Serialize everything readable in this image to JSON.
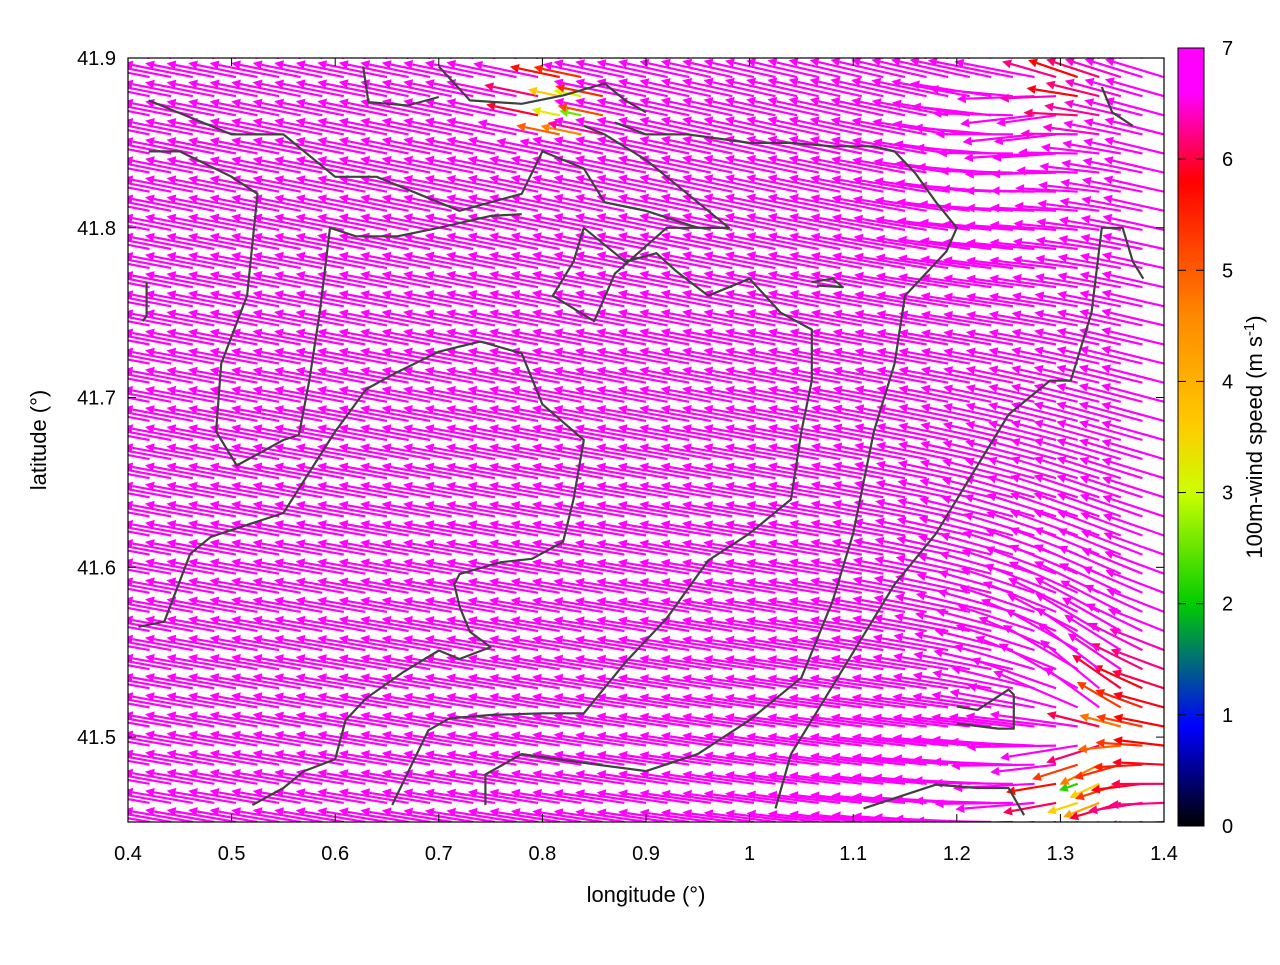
{
  "chart_data": {
    "type": "vector-field",
    "xlabel": "longitude (°)",
    "ylabel": "latitude (°)",
    "xlim": [
      0.4,
      1.4
    ],
    "ylim": [
      41.45,
      41.9
    ],
    "x_ticks": [
      "0.4",
      "0.5",
      "0.6",
      "0.7",
      "0.8",
      "0.9",
      "1",
      "1.1",
      "1.2",
      "1.3",
      "1.4"
    ],
    "y_ticks": [
      "41.5",
      "41.6",
      "41.7",
      "41.8",
      "41.9"
    ],
    "x_tick_values": [
      0.4,
      0.5,
      0.6,
      0.7,
      0.8,
      0.9,
      1.0,
      1.1,
      1.2,
      1.3,
      1.4
    ],
    "y_tick_values": [
      41.5,
      41.6,
      41.7,
      41.8,
      41.9
    ],
    "colorbar": {
      "label": "100m-wind speed (m s-1)",
      "label_main": "100m-wind speed (m s",
      "label_sup": "-1",
      "label_end": ")",
      "range": [
        0,
        7
      ],
      "ticks": [
        "0",
        "1",
        "2",
        "3",
        "4",
        "5",
        "6",
        "7"
      ],
      "tick_values": [
        0,
        1,
        2,
        3,
        4,
        5,
        6,
        7
      ],
      "palette": [
        "#000000",
        "#0000ff",
        "#00cc00",
        "#ccff00",
        "#ffcc00",
        "#ff8800",
        "#ff0000",
        "#ff00ff",
        "#ff00ff"
      ],
      "palette_stops": [
        0,
        0.9,
        2,
        3,
        3.6,
        4.6,
        5.8,
        6.6,
        7
      ]
    },
    "vector_field": {
      "grid_x_count": 48,
      "grid_y_count": 40,
      "speed_cap": 7,
      "arrow_scale_deg_per_ms": 0.0085,
      "base_flow": {
        "u": -7.6,
        "v": 0.9
      },
      "sources": [
        {
          "lon": 1.33,
          "lat": 41.505,
          "strength": 0.014
        },
        {
          "lon": 1.285,
          "lat": 41.89,
          "strength": 0.01
        }
      ],
      "stagnation": [
        {
          "lon": 0.83,
          "lat": 41.87,
          "radius": 0.05
        },
        {
          "lon": 1.32,
          "lat": 41.47,
          "radius": 0.045
        }
      ]
    },
    "coastline_color": "#404040",
    "contours": [
      [
        [
          0.42,
          41.875
        ],
        [
          0.5,
          41.855
        ],
        [
          0.55,
          41.855
        ],
        [
          0.6,
          41.83
        ],
        [
          0.64,
          41.83
        ],
        [
          0.7,
          41.815
        ],
        [
          0.72,
          41.81
        ],
        [
          0.78,
          41.82
        ],
        [
          0.8,
          41.845
        ],
        [
          0.84,
          41.835
        ],
        [
          0.86,
          41.815
        ],
        [
          0.9,
          41.81
        ],
        [
          0.95,
          41.8
        ],
        [
          0.98,
          41.8
        ],
        [
          0.94,
          41.82
        ],
        [
          0.9,
          41.84
        ],
        [
          0.86,
          41.855
        ],
        [
          0.84,
          41.86
        ]
      ],
      [
        [
          0.42,
          41.845
        ],
        [
          0.45,
          41.845
        ],
        [
          0.5,
          41.83
        ],
        [
          0.525,
          41.82
        ],
        [
          0.515,
          41.76
        ],
        [
          0.49,
          41.72
        ],
        [
          0.485,
          41.68
        ],
        [
          0.505,
          41.66
        ],
        [
          0.55,
          41.675
        ],
        [
          0.565,
          41.678
        ],
        [
          0.575,
          41.71
        ],
        [
          0.585,
          41.75
        ],
        [
          0.595,
          41.8
        ],
        [
          0.62,
          41.795
        ],
        [
          0.66,
          41.795
        ],
        [
          0.7,
          41.8
        ],
        [
          0.75,
          41.807
        ],
        [
          0.78,
          41.808
        ]
      ],
      [
        [
          0.418,
          41.768
        ],
        [
          0.418,
          41.748
        ],
        [
          0.414,
          41.745
        ]
      ],
      [
        [
          0.41,
          41.565
        ],
        [
          0.435,
          41.568
        ],
        [
          0.46,
          41.608
        ],
        [
          0.48,
          41.618
        ],
        [
          0.55,
          41.632
        ],
        [
          0.6,
          41.68
        ],
        [
          0.63,
          41.705
        ],
        [
          0.66,
          41.715
        ],
        [
          0.7,
          41.727
        ],
        [
          0.74,
          41.733
        ],
        [
          0.78,
          41.726
        ],
        [
          0.8,
          41.696
        ],
        [
          0.84,
          41.675
        ],
        [
          0.83,
          41.64
        ],
        [
          0.82,
          41.615
        ],
        [
          0.79,
          41.605
        ],
        [
          0.76,
          41.603
        ],
        [
          0.72,
          41.596
        ],
        [
          0.715,
          41.59
        ],
        [
          0.72,
          41.577
        ],
        [
          0.73,
          41.562
        ],
        [
          0.75,
          41.553
        ],
        [
          0.72,
          41.546
        ],
        [
          0.7,
          41.551
        ],
        [
          0.665,
          41.538
        ],
        [
          0.63,
          41.523
        ],
        [
          0.61,
          41.51
        ],
        [
          0.6,
          41.487
        ],
        [
          0.57,
          41.48
        ],
        [
          0.55,
          41.47
        ],
        [
          0.52,
          41.46
        ]
      ],
      [
        [
          0.655,
          41.46
        ],
        [
          0.67,
          41.479
        ],
        [
          0.69,
          41.504
        ],
        [
          0.71,
          41.511
        ],
        [
          0.75,
          41.513
        ],
        [
          0.8,
          41.514
        ],
        [
          0.84,
          41.514
        ],
        [
          0.88,
          41.544
        ],
        [
          0.92,
          41.57
        ],
        [
          0.96,
          41.604
        ],
        [
          1.0,
          41.62
        ],
        [
          1.04,
          41.64
        ],
        [
          1.05,
          41.68
        ],
        [
          1.06,
          41.71
        ],
        [
          1.06,
          41.74
        ],
        [
          1.03,
          41.75
        ],
        [
          1.0,
          41.77
        ],
        [
          0.96,
          41.76
        ],
        [
          0.93,
          41.774
        ],
        [
          0.91,
          41.785
        ],
        [
          0.88,
          41.78
        ],
        [
          0.86,
          41.79
        ],
        [
          0.84,
          41.8
        ],
        [
          0.83,
          41.78
        ],
        [
          0.81,
          41.76
        ],
        [
          0.85,
          41.745
        ],
        [
          0.87,
          41.773
        ],
        [
          0.92,
          41.8
        ],
        [
          0.98,
          41.8
        ]
      ],
      [
        [
          0.745,
          41.46
        ],
        [
          0.745,
          41.478
        ],
        [
          0.78,
          41.49
        ],
        [
          0.85,
          41.484
        ],
        [
          0.9,
          41.48
        ],
        [
          0.95,
          41.49
        ],
        [
          1.0,
          41.51
        ],
        [
          1.05,
          41.535
        ],
        [
          1.08,
          41.58
        ],
        [
          1.1,
          41.62
        ],
        [
          1.12,
          41.68
        ],
        [
          1.14,
          41.72
        ],
        [
          1.15,
          41.76
        ],
        [
          1.19,
          41.786
        ],
        [
          1.2,
          41.8
        ],
        [
          1.18,
          41.815
        ],
        [
          1.16,
          41.832
        ],
        [
          1.14,
          41.845
        ],
        [
          1.12,
          41.848
        ],
        [
          1.08,
          41.848
        ],
        [
          1.04,
          41.85
        ],
        [
          1.0,
          41.85
        ],
        [
          0.94,
          41.855
        ],
        [
          0.9,
          41.855
        ],
        [
          0.87,
          41.862
        ]
      ],
      [
        [
          1.065,
          41.766
        ],
        [
          1.09,
          41.765
        ],
        [
          1.08,
          41.77
        ],
        [
          1.06,
          41.768
        ]
      ],
      [
        [
          1.025,
          41.458
        ],
        [
          1.04,
          41.49
        ],
        [
          1.07,
          41.52
        ],
        [
          1.1,
          41.55
        ],
        [
          1.14,
          41.59
        ],
        [
          1.18,
          41.62
        ],
        [
          1.22,
          41.66
        ],
        [
          1.25,
          41.69
        ],
        [
          1.29,
          41.71
        ],
        [
          1.31,
          41.71
        ],
        [
          1.33,
          41.75
        ],
        [
          1.34,
          41.8
        ],
        [
          1.36,
          41.8
        ],
        [
          1.37,
          41.78
        ],
        [
          1.38,
          41.77
        ]
      ],
      [
        [
          1.2,
          41.518
        ],
        [
          1.22,
          41.516
        ],
        [
          1.25,
          41.528
        ],
        [
          1.255,
          41.525
        ],
        [
          1.255,
          41.505
        ],
        [
          1.24,
          41.505
        ],
        [
          1.2,
          41.508
        ]
      ],
      [
        [
          1.11,
          41.458
        ],
        [
          1.18,
          41.472
        ],
        [
          1.22,
          41.47
        ],
        [
          1.25,
          41.47
        ],
        [
          1.265,
          41.454
        ]
      ],
      [
        [
          0.7,
          41.895
        ],
        [
          0.73,
          41.875
        ],
        [
          0.78,
          41.873
        ],
        [
          0.82,
          41.878
        ],
        [
          0.86,
          41.885
        ],
        [
          0.88,
          41.875
        ],
        [
          0.9,
          41.868
        ]
      ],
      [
        [
          0.627,
          41.895
        ],
        [
          0.632,
          41.874
        ],
        [
          0.67,
          41.872
        ],
        [
          0.7,
          41.877
        ]
      ],
      [
        [
          1.34,
          41.883
        ],
        [
          1.35,
          41.868
        ],
        [
          1.37,
          41.86
        ]
      ]
    ]
  }
}
